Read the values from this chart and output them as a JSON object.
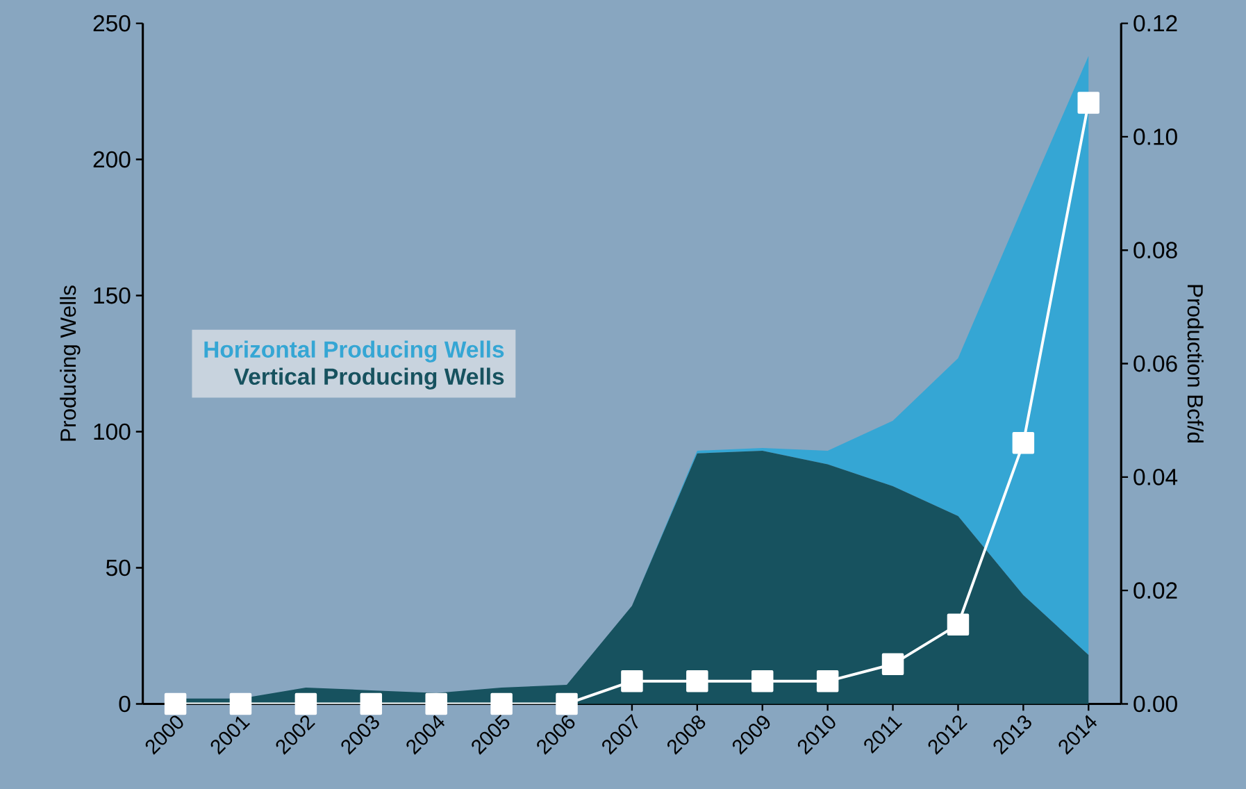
{
  "chart_data": {
    "type": "area",
    "stacked": true,
    "ylabel": "Producing Wells",
    "y2label": "Production Bcf/d",
    "categories": [
      "2000",
      "2001",
      "2002",
      "2003",
      "2004",
      "2005",
      "2006",
      "2007",
      "2008",
      "2009",
      "2010",
      "2011",
      "2012",
      "2013",
      "2014"
    ],
    "series": [
      {
        "name": "Vertical Producing Wells",
        "color": "#17525f",
        "values": [
          2,
          2,
          6,
          5,
          4,
          6,
          7,
          36,
          92,
          93,
          88,
          80,
          69,
          40,
          18
        ]
      },
      {
        "name": "Horizontal Producing Wells",
        "color": "#35a6d4",
        "values": [
          0,
          0,
          0,
          0,
          0,
          0,
          0,
          0,
          1,
          1,
          5,
          24,
          58,
          143,
          220
        ]
      },
      {
        "color": "#ffffff",
        "type": "line",
        "axis": "y2",
        "marker": "square",
        "values": [
          0,
          0,
          0,
          0,
          0,
          0,
          0,
          0.004,
          0.004,
          0.004,
          0.004,
          0.007,
          0.014,
          0.046,
          0.106
        ]
      }
    ],
    "ylim": [
      0,
      250
    ],
    "yticks": [
      0,
      50,
      100,
      150,
      200,
      250
    ],
    "y2lim": [
      0,
      0.12
    ],
    "y2ticks": [
      {
        "value": 0,
        "label": "0.00"
      },
      {
        "value": 0.02,
        "label": "0.02"
      },
      {
        "value": 0.04,
        "label": "0.04"
      },
      {
        "value": 0.06,
        "label": "0.06"
      },
      {
        "value": 0.08,
        "label": "0.08"
      },
      {
        "value": 0.1,
        "label": "0.10"
      },
      {
        "value": 0.12,
        "label": "0.12"
      }
    ],
    "legend": "left"
  }
}
